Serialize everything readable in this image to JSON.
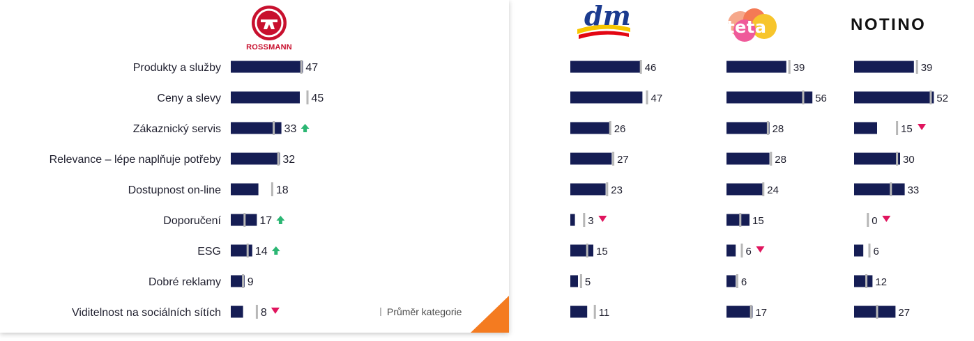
{
  "colors": {
    "bar": "#151d54",
    "avg_marker": "#b7b7b7",
    "up": "#2bb673",
    "down": "#e0155e",
    "accent": "#f47b20",
    "rossmann_red": "#c8102e",
    "dm_blue": "#1b3b8f",
    "dm_yellow": "#f7c600",
    "dm_red": "#e30613"
  },
  "logos": {
    "rossmann": "ROSSMANN",
    "dm": "dm",
    "teta": "teta",
    "notino": "NOTINO"
  },
  "legend": {
    "label": "Průměr kategorie"
  },
  "chart_data": {
    "type": "bar",
    "orientation": "horizontal",
    "categories": [
      "Produkty a služby",
      "Ceny a slevy",
      "Zákaznický servis",
      "Relevance – lépe naplňuje potřeby",
      "Dostupnost on-line",
      "Doporučení",
      "ESG",
      "Dobré reklamy",
      "Viditelnost na sociálních sítích"
    ],
    "series": [
      {
        "name": "ROSSMANN",
        "values": [
          47,
          45,
          33,
          32,
          18,
          17,
          14,
          9,
          8
        ],
        "category_average": [
          46,
          50,
          28,
          31,
          27,
          9,
          11,
          8,
          17
        ],
        "trend": [
          null,
          null,
          "up",
          null,
          null,
          "up",
          "up",
          null,
          "down"
        ]
      },
      {
        "name": "dm",
        "values": [
          46,
          47,
          26,
          27,
          23,
          3,
          15,
          5,
          11
        ],
        "category_average": [
          46,
          50,
          26,
          28,
          24,
          9,
          11,
          7,
          16
        ],
        "trend": [
          null,
          null,
          null,
          null,
          null,
          "down",
          null,
          null,
          null
        ]
      },
      {
        "name": "teta",
        "values": [
          39,
          56,
          28,
          28,
          24,
          15,
          6,
          6,
          17
        ],
        "category_average": [
          41,
          50,
          27,
          29,
          24,
          9,
          10,
          7,
          16
        ],
        "trend": [
          null,
          null,
          null,
          null,
          null,
          null,
          "down",
          null,
          null
        ]
      },
      {
        "name": "NOTINO",
        "values": [
          39,
          52,
          15,
          30,
          33,
          0,
          6,
          12,
          27
        ],
        "category_average": [
          41,
          50,
          28,
          28,
          24,
          9,
          10,
          8,
          15
        ],
        "trend": [
          null,
          null,
          "down",
          null,
          null,
          "down",
          null,
          null,
          null
        ]
      }
    ],
    "title": "",
    "xlabel": "",
    "ylabel": "",
    "xlim": [
      0,
      60
    ],
    "grid": false,
    "legend_position": "bottom-right"
  }
}
